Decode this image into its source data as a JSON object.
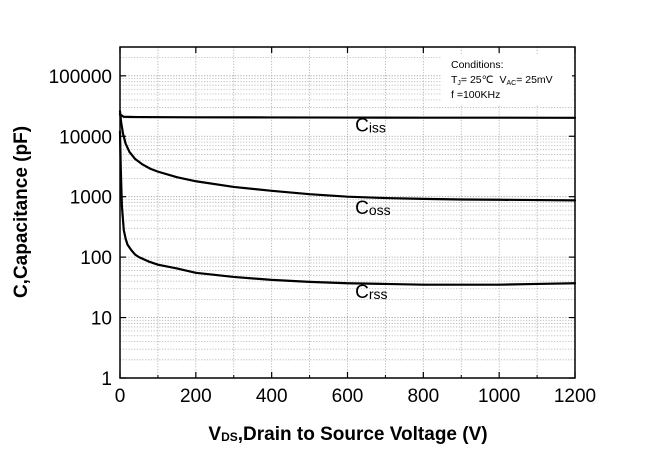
{
  "chart_data": {
    "type": "line",
    "x_axis": {
      "label_main": "V",
      "label_sub": "DS",
      "label_rest": ",Drain to Source Voltage (V)",
      "range": [
        0,
        1200
      ],
      "ticks": [
        0,
        200,
        400,
        600,
        800,
        1000,
        1200
      ],
      "tick_labels": [
        "0",
        "200",
        "400",
        "600",
        "800",
        "1000",
        "1200"
      ]
    },
    "y_axis": {
      "label": "C,Capacitance (pF)",
      "scale": "log",
      "range": [
        1,
        300000
      ],
      "ticks": [
        1,
        10,
        100,
        1000,
        10000,
        100000
      ],
      "tick_labels": [
        "1",
        "10",
        "100",
        "1000",
        "10000",
        "100000"
      ]
    },
    "grid": "dotted-major-and-minor",
    "conditions": {
      "line1": "Conditions:",
      "tj_main": "T",
      "tj_sub": "J",
      "tj_rest": "= 25℃",
      "vac_main": "V",
      "vac_sub": "AC",
      "vac_rest": "= 25mV",
      "line3": "f =100KHz"
    },
    "series": [
      {
        "name": "Ciss",
        "name_main": "C",
        "name_sub": "iss",
        "label_at": [
          620,
          12000
        ],
        "points": [
          [
            0,
            23000
          ],
          [
            10,
            21000
          ],
          [
            50,
            20800
          ],
          [
            200,
            20600
          ],
          [
            400,
            20500
          ],
          [
            600,
            20400
          ],
          [
            800,
            20300
          ],
          [
            1000,
            20300
          ],
          [
            1200,
            20200
          ]
        ]
      },
      {
        "name": "Coss",
        "name_main": "C",
        "name_sub": "oss",
        "label_at": [
          620,
          520
        ],
        "points": [
          [
            0,
            26000
          ],
          [
            3,
            17000
          ],
          [
            8,
            11000
          ],
          [
            15,
            7500
          ],
          [
            25,
            5500
          ],
          [
            40,
            4200
          ],
          [
            60,
            3400
          ],
          [
            80,
            2900
          ],
          [
            100,
            2600
          ],
          [
            150,
            2100
          ],
          [
            200,
            1800
          ],
          [
            300,
            1450
          ],
          [
            400,
            1250
          ],
          [
            500,
            1100
          ],
          [
            600,
            1000
          ],
          [
            700,
            950
          ],
          [
            800,
            920
          ],
          [
            900,
            900
          ],
          [
            1000,
            890
          ],
          [
            1100,
            880
          ],
          [
            1200,
            870
          ]
        ]
      },
      {
        "name": "Crss",
        "name_main": "C",
        "name_sub": "rss",
        "label_at": [
          620,
          21
        ],
        "points": [
          [
            0,
            12000
          ],
          [
            2,
            3000
          ],
          [
            5,
            700
          ],
          [
            10,
            280
          ],
          [
            15,
            200
          ],
          [
            20,
            160
          ],
          [
            30,
            130
          ],
          [
            40,
            110
          ],
          [
            50,
            100
          ],
          [
            75,
            85
          ],
          [
            100,
            75
          ],
          [
            150,
            65
          ],
          [
            200,
            55
          ],
          [
            300,
            47
          ],
          [
            400,
            42
          ],
          [
            500,
            39
          ],
          [
            600,
            37
          ],
          [
            700,
            36
          ],
          [
            800,
            35
          ],
          [
            900,
            35
          ],
          [
            1000,
            35
          ],
          [
            1100,
            36
          ],
          [
            1200,
            37
          ]
        ]
      }
    ]
  }
}
